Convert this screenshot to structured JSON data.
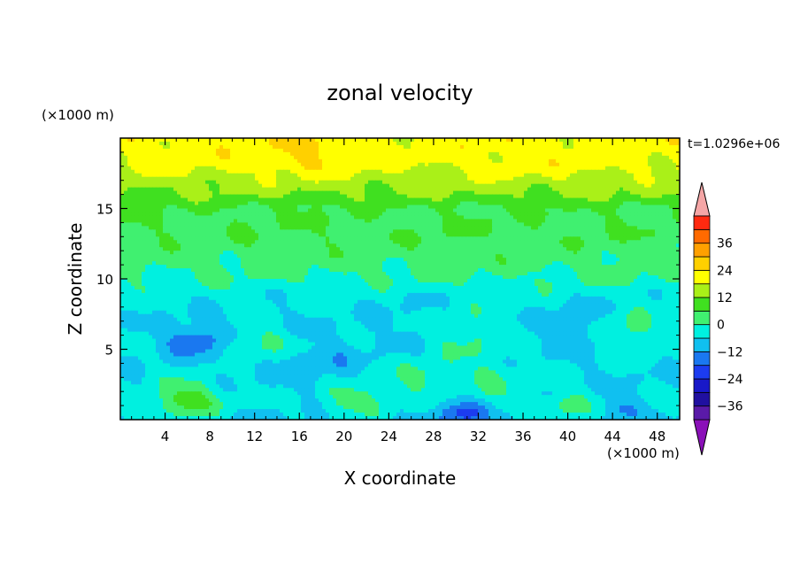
{
  "chart_data": {
    "type": "heatmap",
    "title": "zonal velocity",
    "time_label": "t=1.0296e+06",
    "xlabel": "X coordinate",
    "ylabel": "Z coordinate",
    "x_unit": "(×1000 m)",
    "y_unit": "(×1000 m)",
    "xlim": [
      0,
      50
    ],
    "ylim": [
      0,
      20
    ],
    "x_ticks": [
      4,
      8,
      12,
      16,
      20,
      24,
      28,
      32,
      36,
      40,
      44,
      48
    ],
    "y_ticks": [
      5,
      10,
      15
    ],
    "x_tick_labels": [
      "4",
      "8",
      "12",
      "16",
      "20",
      "24",
      "28",
      "32",
      "36",
      "40",
      "44",
      "48"
    ],
    "y_tick_labels": [
      "5",
      "10",
      "15"
    ],
    "colorbar": {
      "levels": [
        -42,
        -36,
        -30,
        -24,
        -18,
        -12,
        -6,
        0,
        6,
        12,
        18,
        24,
        30,
        36,
        42
      ],
      "labeled_values": [
        "36",
        "24",
        "12",
        "0",
        "−12",
        "−24",
        "−36"
      ],
      "colors": [
        "#5a1aa8",
        "#2010a0",
        "#1818c8",
        "#1c3cf0",
        "#1a78f0",
        "#10c0f0",
        "#00f0e0",
        "#40f070",
        "#40e020",
        "#aaf018",
        "#ffff00",
        "#ffd000",
        "#ffa000",
        "#ff6a00",
        "#ff2a10"
      ],
      "under_color": "#8a10b8",
      "over_color": "#f5a6a6"
    },
    "features": [
      {
        "x": 17,
        "z": 19.2,
        "u": 26,
        "r": 4
      },
      {
        "x": 36,
        "z": 18.4,
        "u": 21,
        "r": 7
      },
      {
        "x": 5,
        "z": 18.5,
        "u": 20,
        "r": 5
      },
      {
        "x": 46,
        "z": 18.5,
        "u": 20,
        "r": 5
      },
      {
        "x": 25,
        "z": 18.2,
        "u": 19,
        "r": 5
      },
      {
        "x": 6.5,
        "z": 5.5,
        "u": -14,
        "r": 2
      },
      {
        "x": 7,
        "z": 6,
        "u": -9,
        "r": 4
      },
      {
        "x": 18,
        "z": 4,
        "u": -10,
        "r": 4
      },
      {
        "x": 25,
        "z": 7.5,
        "u": -7,
        "r": 4
      },
      {
        "x": 41,
        "z": 7,
        "u": -10,
        "r": 3.5
      },
      {
        "x": 14,
        "z": 8,
        "u": -5,
        "r": 4
      },
      {
        "x": 30.5,
        "z": 0.5,
        "u": -20,
        "r": 2
      },
      {
        "x": 45,
        "z": 0.8,
        "u": -14,
        "r": 1.5
      },
      {
        "x": 6,
        "z": 1.5,
        "u": 9,
        "r": 3
      },
      {
        "x": 12.5,
        "z": 5.5,
        "u": 3,
        "r": 2.5
      },
      {
        "x": 21,
        "z": 1.5,
        "u": 3,
        "r": 3
      },
      {
        "x": 31,
        "z": 6,
        "u": 2,
        "r": 3
      },
      {
        "x": 33,
        "z": 3,
        "u": 1,
        "r": 3
      },
      {
        "x": 45.5,
        "z": 6.5,
        "u": 3,
        "r": 2.5
      },
      {
        "x": 40,
        "z": 1,
        "u": 4,
        "r": 2
      },
      {
        "x": 27,
        "z": 3,
        "u": 2,
        "r": 2.5
      }
    ]
  }
}
